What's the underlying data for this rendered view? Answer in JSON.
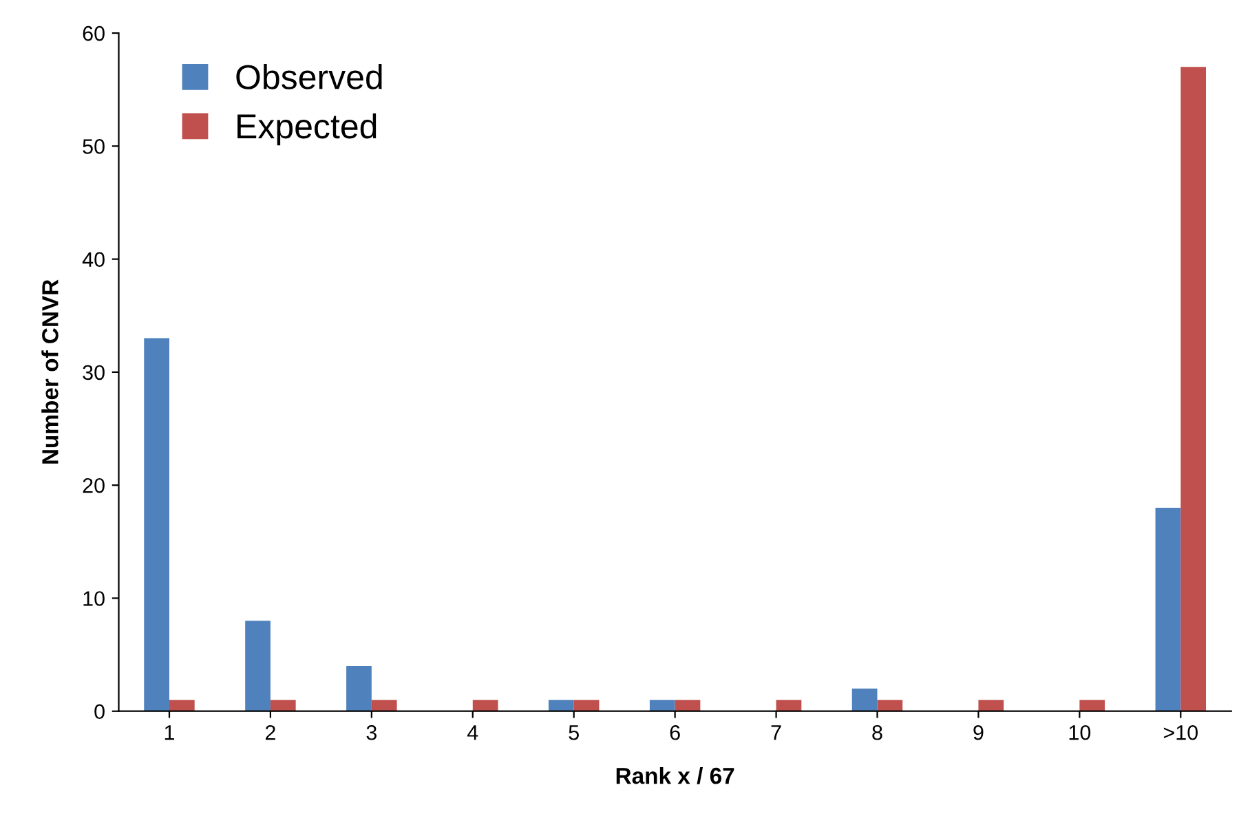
{
  "chart_data": {
    "type": "bar",
    "xlabel": "Rank x / 67",
    "ylabel": "Number of CNVR",
    "categories": [
      "1",
      "2",
      "3",
      "4",
      "5",
      "6",
      "7",
      "8",
      "9",
      "10",
      ">10"
    ],
    "series": [
      {
        "name": "Observed",
        "color": "#4f81bd",
        "values": [
          33,
          8,
          4,
          0,
          1,
          1,
          0,
          2,
          0,
          0,
          18
        ]
      },
      {
        "name": "Expected",
        "color": "#c0504d",
        "values": [
          1,
          1,
          1,
          1,
          1,
          1,
          1,
          1,
          1,
          1,
          57
        ]
      }
    ],
    "ylim": [
      0,
      60
    ],
    "yticks": [
      0,
      10,
      20,
      30,
      40,
      50,
      60
    ],
    "grid": false,
    "legend": "top left"
  }
}
